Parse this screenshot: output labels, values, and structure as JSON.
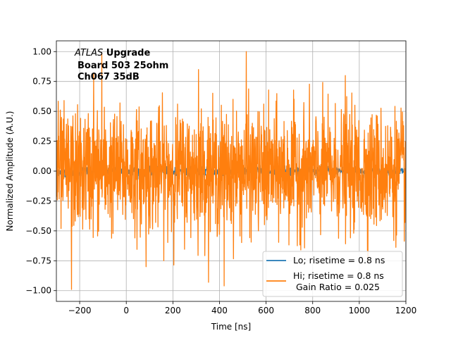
{
  "chart_data": {
    "type": "line",
    "title": "",
    "xlabel": "Time [ns]",
    "ylabel": "Normalized Amplitude (A.U.)",
    "xlim": [
      -300,
      1200
    ],
    "ylim": [
      -1.09,
      1.09
    ],
    "xticks": [
      -200,
      0,
      200,
      400,
      600,
      800,
      1000,
      1200
    ],
    "xtick_labels": [
      "−200",
      "0",
      "200",
      "400",
      "600",
      "800",
      "1000",
      "1200"
    ],
    "yticks": [
      1.0,
      0.75,
      0.5,
      0.25,
      0.0,
      -0.25,
      -0.5,
      -0.75,
      -1.0
    ],
    "ytick_labels": [
      "1.00",
      "0.75",
      "0.50",
      "0.25",
      "0.00",
      "−0.25",
      "−0.50",
      "−0.75",
      "−1.00"
    ],
    "grid": true,
    "legend_position": "lower-right",
    "annotation": {
      "italic": "ATLAS",
      "bold_suffix": " Upgrade",
      "line2": "Board 503 25ohm",
      "line3": "Ch067 35dB"
    },
    "series": [
      {
        "name": "Lo; risetime = 0.8 ns",
        "color": "#1f77b4",
        "x_range": [
          -300,
          1200
        ],
        "approx_amplitude": 0.02
      },
      {
        "name": "Hi; risetime = 0.8 ns",
        "name_line2": " Gain Ratio = 0.025",
        "color": "#ff7f0e",
        "x_range": [
          -300,
          1200
        ],
        "approx_amplitude_rms": 0.25,
        "peaks": [
          {
            "x": -105,
            "y": 0.99
          },
          {
            "x": 515,
            "y": 1.0
          },
          {
            "x": -235,
            "y": -0.99
          },
          {
            "x": 420,
            "y": -0.96
          },
          {
            "x": 85,
            "y": -0.8
          },
          {
            "x": -140,
            "y": 0.82
          },
          {
            "x": 310,
            "y": 0.85
          },
          {
            "x": 940,
            "y": 0.8
          }
        ]
      }
    ]
  }
}
